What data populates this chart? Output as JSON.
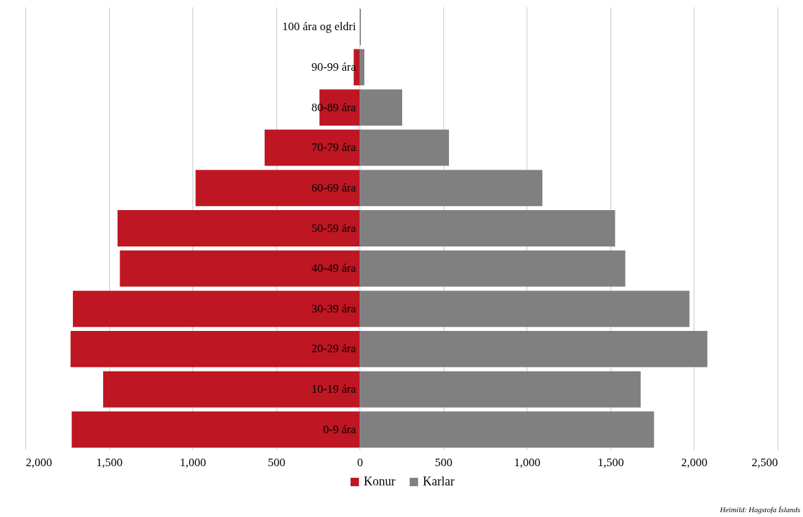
{
  "chart_data": {
    "type": "bar",
    "orientation": "horizontal",
    "stacked": true,
    "categories": [
      "100 ára og eldri",
      "90-99 ára",
      "80-89 ára",
      "70-79 ára",
      "60-69 ára",
      "50-59 ára",
      "40-49 ára",
      "30-39 ára",
      "20-29 ára",
      "10-19 ára",
      "0-9 ára"
    ],
    "series": [
      {
        "name": "Konur",
        "color": "#be1622",
        "values": [
          null,
          -36,
          -241,
          -569,
          -982,
          -1449,
          -1435,
          -1716,
          -1730,
          -1535,
          -1723
        ]
      },
      {
        "name": "Karlar",
        "color": "#808080",
        "values": [
          7,
          28,
          254,
          534,
          1093,
          1528,
          1589,
          1973,
          2080,
          1681,
          1761
        ]
      }
    ],
    "xlim": [
      -2000,
      2500
    ],
    "xticks": [
      {
        "value": -2000,
        "label": "2,000"
      },
      {
        "value": -1500,
        "label": "1,500"
      },
      {
        "value": -1000,
        "label": "1,000"
      },
      {
        "value": -500,
        "label": "500"
      },
      0,
      500,
      {
        "value": 1000,
        "label": "1,000"
      },
      {
        "value": 1500,
        "label": "1,500"
      },
      {
        "value": 2000,
        "label": "2,000"
      },
      {
        "value": 2500,
        "label": "2,500"
      }
    ],
    "grid": "x",
    "legend": "bottom",
    "annotations": [
      "Heimild: Hagstofa Íslands"
    ]
  }
}
